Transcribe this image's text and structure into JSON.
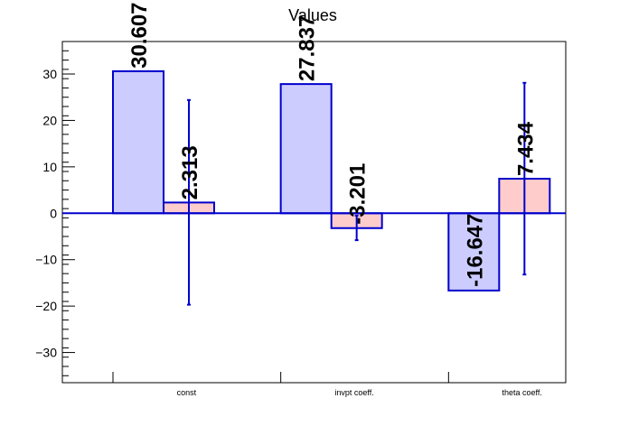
{
  "chart_data": {
    "type": "bar",
    "title": "Values",
    "xlabel": "",
    "ylabel": "",
    "ylim": [
      -36.5,
      37
    ],
    "yticks": [
      -30,
      -20,
      -10,
      0,
      10,
      20,
      30
    ],
    "ytick_labels": [
      "−30",
      "−20",
      "−10",
      "0",
      "10",
      "20",
      "30"
    ],
    "categories": [
      "const",
      "invpt coeff.",
      "theta coeff."
    ],
    "series": [
      {
        "values": [
          30.607,
          27.837,
          -16.647
        ],
        "labels": [
          "30.607",
          "27.837",
          "-16.647"
        ],
        "fill": "#ccccff",
        "stroke": "#0000cc"
      },
      {
        "values": [
          2.313,
          -3.201,
          7.434
        ],
        "labels": [
          "2.313",
          "-3.201",
          "7.434"
        ],
        "errors_low": [
          -19.7,
          -5.8,
          -13.2
        ],
        "errors_high": [
          24.4,
          -0.5,
          28.1
        ],
        "fill": "#ffcccc",
        "stroke": "#0000cc"
      }
    ],
    "grid": false,
    "legend": "none"
  }
}
